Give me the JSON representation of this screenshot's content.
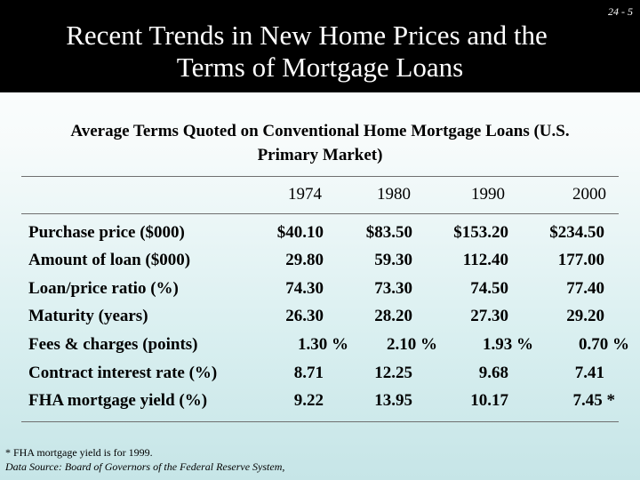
{
  "slide_number": "24 - 5",
  "title_lines": [
    "Recent Trends in New Home Prices and the",
    "Terms of Mortgage Loans"
  ],
  "subtitle_lines": [
    "Average Terms Quoted on Conventional Home Mortgage Loans (U.S.",
    "Primary Market)"
  ],
  "table": {
    "columns": [
      "1974",
      "1980",
      "1990",
      "2000"
    ],
    "rows": [
      {
        "label": "Purchase price ($000)",
        "values": [
          "$40.10",
          "$83.50",
          "$153.20",
          "$234.50"
        ]
      },
      {
        "label": "Amount of loan ($000)",
        "values": [
          "29.80",
          "59.30",
          "112.40",
          "177.00"
        ]
      },
      {
        "label": "Loan/price ratio (%)",
        "values": [
          "74.30",
          "73.30",
          "74.50",
          "77.40"
        ]
      },
      {
        "label": "Maturity (years)",
        "values": [
          "26.30",
          "28.20",
          "27.30",
          "29.20"
        ]
      },
      {
        "label": "Fees & charges (points)",
        "values": [
          "1.30 %",
          "2.10 %",
          "1.93 %",
          "0.70 %"
        ]
      },
      {
        "label": "Contract interest rate (%)",
        "values": [
          "8.71",
          "12.25",
          "9.68",
          "7.41"
        ]
      },
      {
        "label": "FHA mortgage yield (%)",
        "values": [
          "9.22",
          "13.95",
          "10.17",
          "7.45 *"
        ]
      }
    ]
  },
  "footnote": "* FHA mortgage yield is for 1999.",
  "source": "Data Source: Board of Governors of the Federal Reserve System,"
}
